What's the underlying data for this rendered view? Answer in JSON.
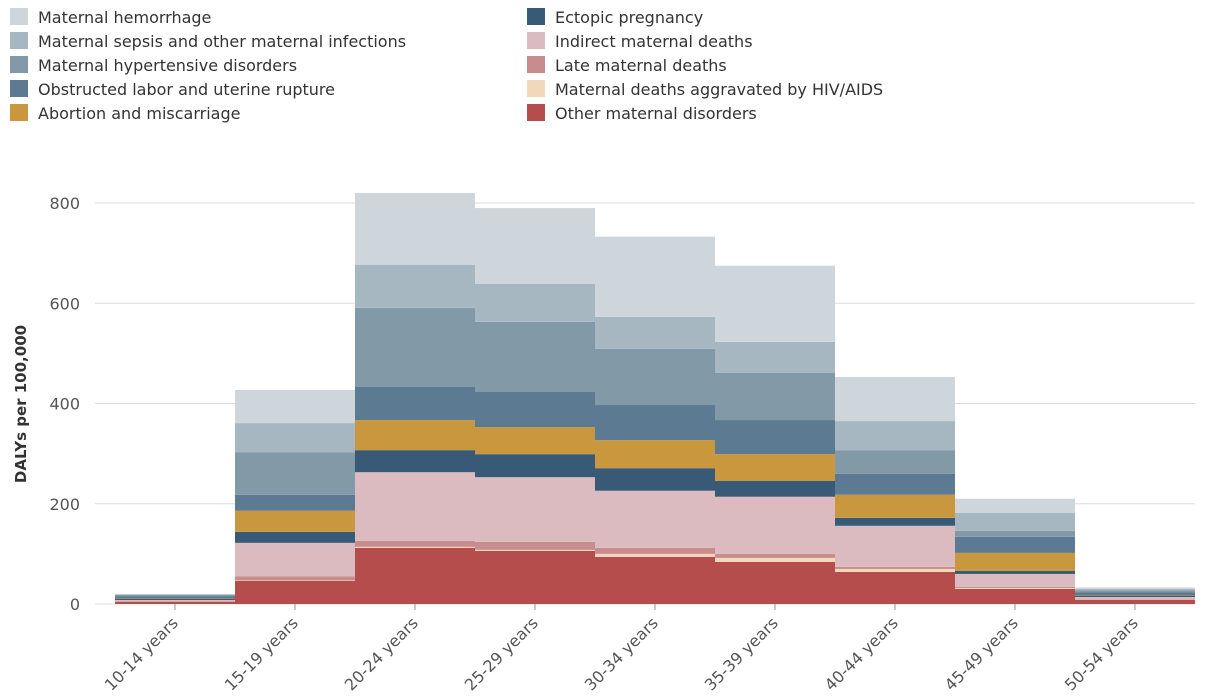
{
  "chart_data": {
    "type": "stacked_bar",
    "y_label": "DALYs per 100,000",
    "categories": [
      "10-14 years",
      "15-19 years",
      "20-24 years",
      "25-29 years",
      "30-34 years",
      "35-39 years",
      "40-44 years",
      "45-49 years",
      "50-54 years"
    ],
    "series": [
      {
        "name": "Maternal hemorrhage",
        "color": "#cfd6db",
        "values": [
          1,
          66,
          143,
          151,
          160,
          152,
          88,
          28,
          3
        ]
      },
      {
        "name": "Maternal sepsis and other maternal infections",
        "color": "#a7b7c2",
        "values": [
          1,
          58,
          86,
          76,
          64,
          62,
          58,
          36,
          3
        ]
      },
      {
        "name": "Maternal hypertensive disorders",
        "color": "#8299a7",
        "values": [
          3,
          85,
          158,
          140,
          112,
          94,
          47,
          12,
          4
        ]
      },
      {
        "name": "Obstructed labor and uterine rupture",
        "color": "#5c7a91",
        "values": [
          4,
          32,
          66,
          70,
          70,
          68,
          42,
          32,
          6
        ]
      },
      {
        "name": "Abortion and miscarriage",
        "color": "#c9973d",
        "values": [
          1,
          42,
          60,
          54,
          56,
          53,
          46,
          36,
          1
        ]
      },
      {
        "name": "Ectopic pregnancy",
        "color": "#385a77",
        "values": [
          2,
          22,
          44,
          46,
          45,
          32,
          16,
          6,
          2
        ]
      },
      {
        "name": "Indirect maternal deaths",
        "color": "#dbbbbf",
        "values": [
          3,
          67,
          137,
          129,
          114,
          114,
          82,
          26,
          4
        ]
      },
      {
        "name": "Late maternal deaths",
        "color": "#c98c8c",
        "values": [
          1,
          8,
          12,
          16,
          12,
          8,
          4,
          2,
          1
        ]
      },
      {
        "name": "Maternal deaths aggravated by HIV/AIDS",
        "color": "#f2d7bb",
        "values": [
          0,
          1,
          2,
          2,
          6,
          8,
          6,
          2,
          1
        ]
      },
      {
        "name": "Other maternal disorders",
        "color": "#b54d4d",
        "values": [
          4,
          46,
          112,
          106,
          94,
          84,
          64,
          30,
          8
        ]
      }
    ],
    "ylim": [
      0,
      850
    ],
    "yticks": [
      0,
      200,
      400,
      600,
      800
    ],
    "grid": true
  }
}
